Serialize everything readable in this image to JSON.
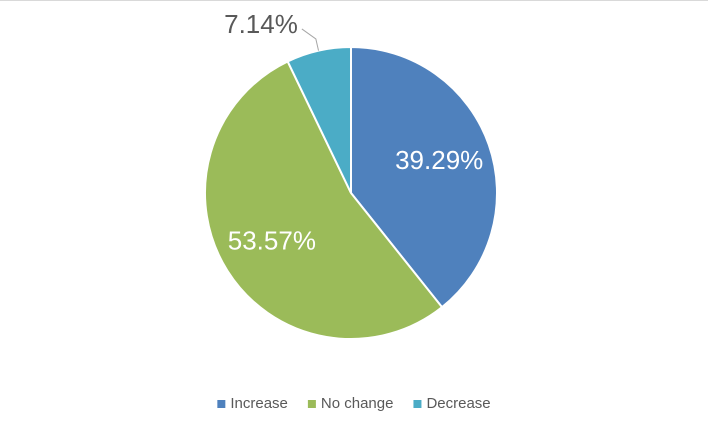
{
  "chart_data": {
    "type": "pie",
    "categories": [
      "Increase",
      "No change",
      "Decrease"
    ],
    "values": [
      39.29,
      53.57,
      7.14
    ],
    "value_labels": [
      "39.29%",
      "53.57%",
      "7.14%"
    ],
    "colors": [
      "#4f81bd",
      "#9bbb59",
      "#4bacc6"
    ],
    "legend": "bottom"
  }
}
